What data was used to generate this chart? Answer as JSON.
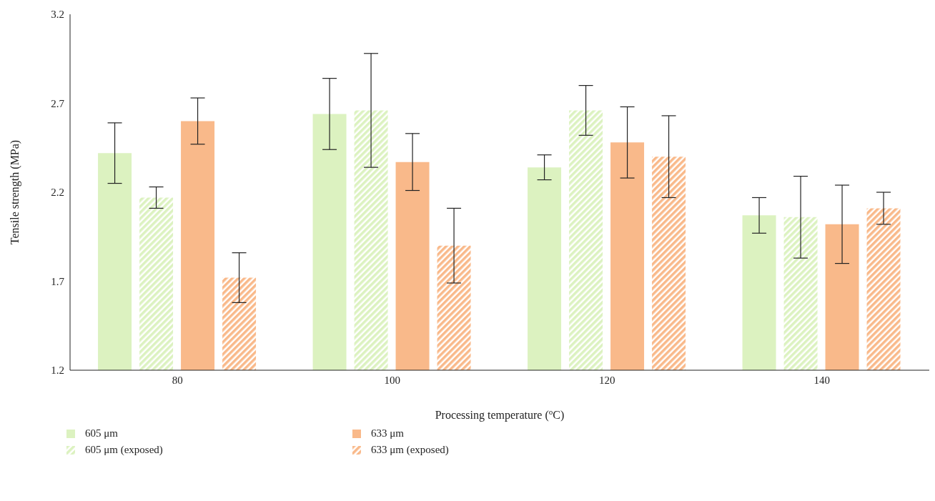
{
  "chart_data": {
    "type": "bar",
    "xlabel": "Processing temperature ($^{o}$C)",
    "ylabel": "Tensile strength (MPa)",
    "categories": [
      "80",
      "100",
      "120",
      "140"
    ],
    "series": [
      {
        "name": "605 μm",
        "color": "#dcf2c0",
        "values": [
          2.42,
          2.64,
          2.34,
          2.07
        ],
        "errors": [
          0.17,
          0.2,
          0.07,
          0.1
        ]
      },
      {
        "name": "605 μm (exposed)",
        "color": "#dcf2c0",
        "values": [
          2.17,
          2.66,
          2.66,
          2.06
        ],
        "errors": [
          0.06,
          0.32,
          0.14,
          0.23
        ]
      },
      {
        "name": "633 μm",
        "color": "#f9b98a",
        "values": [
          2.6,
          2.37,
          2.48,
          2.02
        ],
        "errors": [
          0.13,
          0.16,
          0.2,
          0.22
        ]
      },
      {
        "name": "633 μm (exposed)",
        "color": "#f9b98a",
        "values": [
          1.72,
          1.9,
          2.4,
          2.11
        ],
        "errors": [
          0.14,
          0.21,
          0.23,
          0.09
        ]
      }
    ],
    "ylim": [
      1.2,
      3.2
    ],
    "yticks": [
      1.2,
      1.7,
      2.2,
      2.7,
      3.2
    ],
    "grid": false,
    "legend": "bottom"
  }
}
